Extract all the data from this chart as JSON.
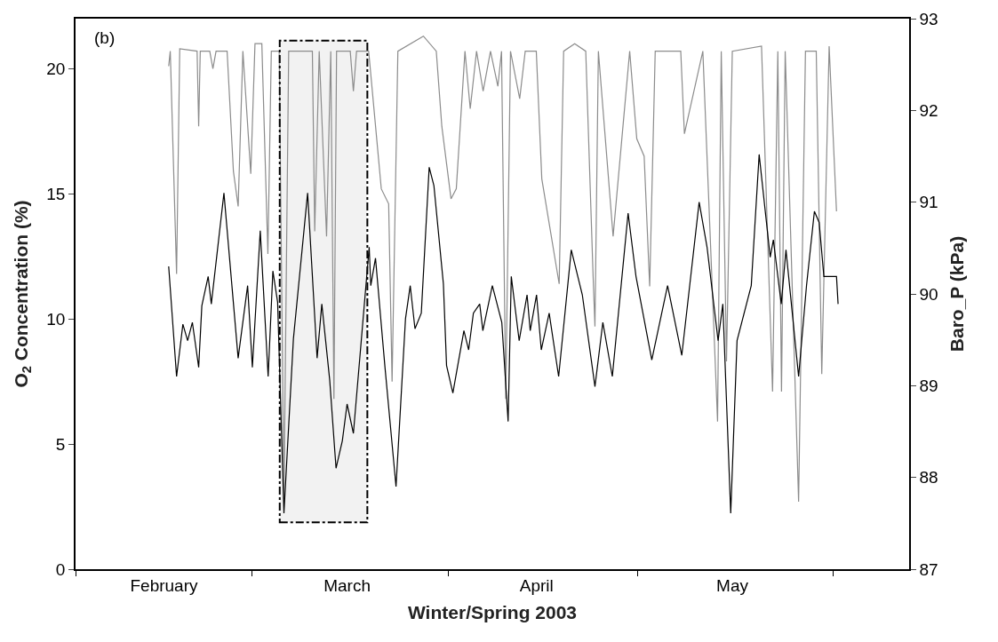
{
  "chart_data": {
    "type": "line",
    "xlabel": "Winter/Spring 2003",
    "ylabel": "O$_{2}$ Concentration (%)",
    "y2label": "Baro_P (kPa)",
    "xlim": [
      "2003-02-01",
      "2003-06-13"
    ],
    "ylim": [
      0,
      22
    ],
    "y2lim": [
      87,
      93
    ],
    "xticks": [
      {
        "value": "2003-02-01",
        "label": null
      },
      {
        "value": "2003-02-15",
        "label": "February"
      },
      {
        "value": "2003-03-01",
        "label": null
      },
      {
        "value": "2003-03-16",
        "label": "March"
      },
      {
        "value": "2003-04-01",
        "label": null
      },
      {
        "value": "2003-04-15",
        "label": "April"
      },
      {
        "value": "2003-05-01",
        "label": null
      },
      {
        "value": "2003-05-16",
        "label": "May"
      },
      {
        "value": "2003-06-01",
        "label": null
      }
    ],
    "yticks": [
      0,
      5,
      10,
      15,
      20
    ],
    "y2ticks": [
      87,
      88,
      89,
      90,
      91,
      92,
      93
    ],
    "annotations": [
      "(b)"
    ],
    "bands": [
      {
        "axis": "x",
        "from": "2003-03-05T08:00",
        "to": "2003-03-19T05:00",
        "label": null,
        "color": "#000000"
      }
    ],
    "series": [
      {
        "color": "#8c8c8c",
        "axis": "y",
        "x": [
          "2003-02-15T18:00",
          "2003-02-16T00:00",
          "2003-02-17T00:00",
          "2003-02-17T12:00",
          "2003-02-20T06:00",
          "2003-02-20T12:00",
          "2003-02-20T18:00",
          "2003-02-22T06:00",
          "2003-02-22T18:00",
          "2003-02-23T06:00",
          "2003-02-25T00:00",
          "2003-02-26T00:00",
          "2003-02-26T18:00",
          "2003-02-27T12:00",
          "2003-02-28T18:00",
          "2003-03-01T10:00",
          "2003-03-02T12:00",
          "2003-03-03T11:00",
          "2003-03-04T00:00",
          "2003-03-05T06:00",
          "2003-03-06T00:00",
          "2003-03-06T18:00",
          "2003-03-10T12:00",
          "2003-03-10T21:00",
          "2003-03-11T14:00",
          "2003-03-12T18:00",
          "2003-03-13T10:00",
          "2003-03-13T22:00",
          "2003-03-14T08:00",
          "2003-03-16T12:00",
          "2003-03-17T00:00",
          "2003-03-17T12:00",
          "2003-03-19T10:00",
          "2003-03-21T10:00",
          "2003-03-22T14:00",
          "2003-03-23T03:00",
          "2003-03-24T01:00",
          "2003-03-28T02:00",
          "2003-03-30T03:00",
          "2003-03-31T00:00",
          "2003-04-01T11:00",
          "2003-04-02T07:00",
          "2003-04-03T16:00",
          "2003-04-04T12:00",
          "2003-04-05T12:00",
          "2003-04-06T13:00",
          "2003-04-07T17:00",
          "2003-04-08T21:00",
          "2003-04-09T11:00",
          "2003-04-10T03:00",
          "2003-04-10T21:00",
          "2003-04-12T08:00",
          "2003-04-13T05:00",
          "2003-04-14T23:00",
          "2003-04-15T20:00",
          "2003-04-18T14:00",
          "2003-04-19T07:00",
          "2003-04-21T01:00",
          "2003-04-22T19:00",
          "2003-04-23T23:00",
          "2003-04-24T06:00",
          "2003-04-24T19:00",
          "2003-04-27T03:00",
          "2003-04-29T18:00",
          "2003-04-30T21:00",
          "2003-05-02T01:00",
          "2003-05-02T22:00",
          "2003-05-03T19:00",
          "2003-05-07T20:00",
          "2003-05-08T10:00",
          "2003-05-11T08:00",
          "2003-05-13T16:00",
          "2003-05-14T06:00",
          "2003-05-15T02:00",
          "2003-05-16T00:00",
          "2003-05-20T15:00",
          "2003-05-22T09:00",
          "2003-05-23T05:00",
          "2003-05-23T19:00",
          "2003-05-24T09:00",
          "2003-05-26T12:00",
          "2003-05-27T14:00",
          "2003-05-29T07:00",
          "2003-05-30T04:00",
          "2003-05-31T08:00",
          "2003-06-01T12:00"
        ],
        "values": [
          20.1,
          20.7,
          11.8,
          20.8,
          20.7,
          17.7,
          20.7,
          20.7,
          20.0,
          20.7,
          20.7,
          15.9,
          14.5,
          20.7,
          15.8,
          21.0,
          21.0,
          12.6,
          20.7,
          20.7,
          2.8,
          20.7,
          20.7,
          13.5,
          20.7,
          13.3,
          20.7,
          6.8,
          20.7,
          20.7,
          19.1,
          20.7,
          20.7,
          15.2,
          14.6,
          7.5,
          20.7,
          21.3,
          20.7,
          17.7,
          14.8,
          15.2,
          20.7,
          18.4,
          20.7,
          19.1,
          20.7,
          19.3,
          20.7,
          6.8,
          20.7,
          18.8,
          20.7,
          20.7,
          15.6,
          11.4,
          20.7,
          21.0,
          20.7,
          11.7,
          9.7,
          20.7,
          13.3,
          20.7,
          17.2,
          16.5,
          11.3,
          20.7,
          20.7,
          17.4,
          20.7,
          5.9,
          20.7,
          8.3,
          20.7,
          20.9,
          7.1,
          20.7,
          7.1,
          20.7,
          2.7,
          20.7,
          20.7,
          7.8,
          20.9,
          14.3
        ]
      },
      {
        "color": "#000000",
        "axis": "y2",
        "x": [
          "2003-02-15T18:00",
          "2003-02-17T00:00",
          "2003-02-18T00:00",
          "2003-02-18T18:00",
          "2003-02-19T12:00",
          "2003-02-20T12:00",
          "2003-02-21T00:00",
          "2003-02-22T00:00",
          "2003-02-22T12:00",
          "2003-02-24T12:00",
          "2003-02-26T18:00",
          "2003-02-28T06:00",
          "2003-03-01T00:00",
          "2003-03-02T06:00",
          "2003-03-03T12:00",
          "2003-03-04T06:00",
          "2003-03-05T00:00",
          "2003-03-06T00:00",
          "2003-03-07T12:00",
          "2003-03-09T18:00",
          "2003-03-11T06:00",
          "2003-03-12T00:00",
          "2003-03-13T06:00",
          "2003-03-14T06:00",
          "2003-03-15T06:00",
          "2003-03-16T00:00",
          "2003-03-17T00:00",
          "2003-03-19T12:00",
          "2003-03-19T18:00",
          "2003-03-20T12:00",
          "2003-03-22T00:00",
          "2003-03-23T18:00",
          "2003-03-25T06:00",
          "2003-03-26T00:00",
          "2003-03-26T18:00",
          "2003-03-27T18:00",
          "2003-03-29T00:00",
          "2003-03-29T18:00",
          "2003-03-31T06:00",
          "2003-03-31T18:00",
          "2003-04-01T18:00",
          "2003-04-03T12:00",
          "2003-04-04T06:00",
          "2003-04-05T00:00",
          "2003-04-06T00:00",
          "2003-04-06T12:00",
          "2003-04-08T00:00",
          "2003-04-09T12:00",
          "2003-04-10T12:00",
          "2003-04-11T00:00",
          "2003-04-12T06:00",
          "2003-04-13T12:00",
          "2003-04-14T00:00",
          "2003-04-15T00:00",
          "2003-04-15T18:00",
          "2003-04-17T00:00",
          "2003-04-18T12:00",
          "2003-04-20T12:00",
          "2003-04-22T06:00",
          "2003-04-24T06:00",
          "2003-04-25T12:00",
          "2003-04-27T00:00",
          "2003-04-29T12:00",
          "2003-04-30T18:00",
          "2003-05-03T06:00",
          "2003-05-05T18:00",
          "2003-05-08T00:00",
          "2003-05-10T18:00",
          "2003-05-12T00:00",
          "2003-05-13T18:00",
          "2003-05-14T12:00",
          "2003-05-15T18:00",
          "2003-05-16T18:00",
          "2003-05-19T00:00",
          "2003-05-20T06:00",
          "2003-05-22T00:00",
          "2003-05-22T12:00",
          "2003-05-23T18:00",
          "2003-05-24T12:00",
          "2003-05-26T12:00",
          "2003-05-27T18:00",
          "2003-05-29T00:00",
          "2003-05-29T18:00",
          "2003-05-30T12:00",
          "2003-06-01T12:00",
          "2003-06-01T18:00"
        ],
        "values": [
          90.3,
          89.1,
          89.67,
          89.49,
          89.69,
          89.2,
          89.87,
          90.19,
          89.89,
          91.1,
          89.3,
          90.09,
          89.2,
          90.69,
          89.1,
          90.25,
          89.91,
          87.61,
          89.51,
          91.1,
          89.3,
          89.89,
          89.06,
          88.1,
          88.4,
          88.8,
          88.48,
          90.51,
          90.09,
          90.39,
          89.2,
          87.9,
          89.73,
          90.09,
          89.62,
          89.79,
          91.38,
          91.18,
          90.11,
          89.22,
          88.92,
          89.6,
          89.39,
          89.79,
          89.89,
          89.6,
          90.09,
          89.69,
          88.61,
          90.19,
          89.49,
          89.99,
          89.6,
          89.99,
          89.39,
          89.79,
          89.1,
          90.48,
          89.99,
          88.99,
          89.69,
          89.1,
          90.88,
          90.19,
          89.28,
          90.09,
          89.33,
          91.0,
          90.51,
          89.49,
          89.89,
          87.61,
          89.49,
          90.09,
          91.52,
          90.4,
          90.59,
          89.89,
          90.48,
          89.1,
          90.09,
          90.9,
          90.78,
          90.19,
          90.19,
          89.89
        ]
      }
    ]
  }
}
